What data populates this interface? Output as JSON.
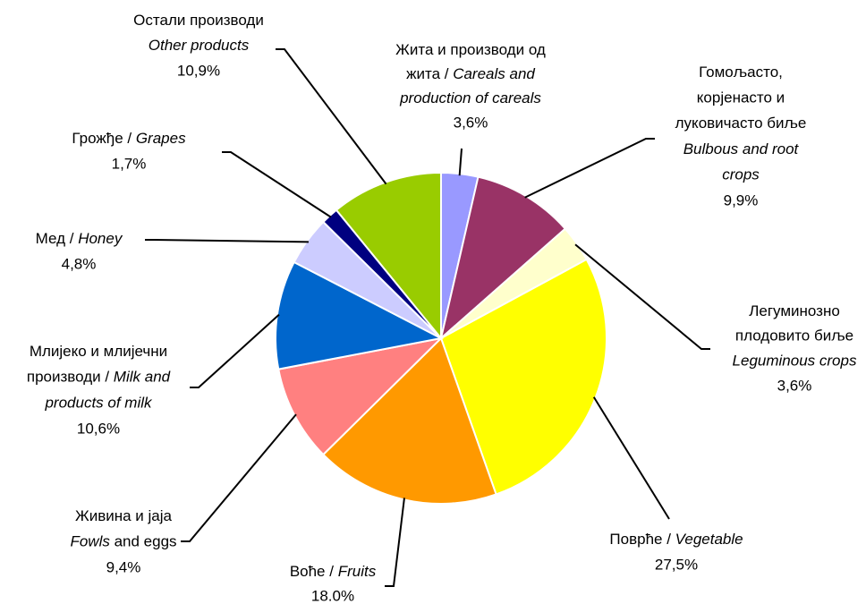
{
  "chart_data": {
    "type": "pie",
    "categories": [
      [
        [
          {
            "text": "Жита и производи од",
            "italic": false
          }
        ],
        [
          {
            "text": "жита / ",
            "italic": false
          },
          {
            "text": "Careals and",
            "italic": true
          }
        ],
        [
          {
            "text": "production of careals",
            "italic": true
          }
        ]
      ],
      [
        [
          {
            "text": "Гомољасто,",
            "italic": false
          }
        ],
        [
          {
            "text": "корјенасто и",
            "italic": false
          }
        ],
        [
          {
            "text": "луковичасто биље",
            "italic": false
          }
        ],
        [
          {
            "text": "Bulbous and root",
            "italic": true
          }
        ],
        [
          {
            "text": "crops",
            "italic": true
          }
        ]
      ],
      [
        [
          {
            "text": "Легуминозно",
            "italic": false
          }
        ],
        [
          {
            "text": "плодовито биље",
            "italic": false
          }
        ],
        [
          {
            "text": "Leguminous crops",
            "italic": true
          }
        ]
      ],
      [
        [
          {
            "text": "Поврће / ",
            "italic": false
          },
          {
            "text": "Vegetable",
            "italic": true
          }
        ]
      ],
      [
        [
          {
            "text": "Воће / ",
            "italic": false
          },
          {
            "text": "Fruits",
            "italic": true
          }
        ]
      ],
      [
        [
          {
            "text": "Живина и јаја",
            "italic": false
          }
        ],
        [
          {
            "text": "Fowls",
            "italic": true
          },
          {
            "text": " and eggs",
            "italic": false
          }
        ]
      ],
      [
        [
          {
            "text": "Млијеко и млијечни",
            "italic": false
          }
        ],
        [
          {
            "text": "производи / ",
            "italic": false
          },
          {
            "text": "Milk and",
            "italic": true
          }
        ],
        [
          {
            "text": "products of milk",
            "italic": true
          }
        ]
      ],
      [
        [
          {
            "text": "Мед / ",
            "italic": false
          },
          {
            "text": "Honey",
            "italic": true
          }
        ]
      ],
      [
        [
          {
            "text": "Грожђе / ",
            "italic": false
          },
          {
            "text": "Grapes",
            "italic": true
          }
        ]
      ],
      [
        [
          {
            "text": "Остали производи",
            "italic": false
          }
        ],
        [
          {
            "text": "Other products",
            "italic": true
          }
        ]
      ]
    ],
    "values": [
      3.6,
      9.9,
      3.6,
      27.5,
      18.0,
      9.4,
      10.6,
      4.8,
      1.7,
      10.9
    ],
    "value_labels": [
      "3,6%",
      "9,9%",
      "3,6%",
      "27,5%",
      "18.0%",
      "9,4%",
      "10,6%",
      "4,8%",
      "1,7%",
      "10,9%"
    ],
    "colors": [
      "#9999ff",
      "#993366",
      "#ffffcc",
      "#ffff00",
      "#ff9900",
      "#ff8080",
      "#0066cc",
      "#ccccff",
      "#000080",
      "#99cc00"
    ]
  }
}
